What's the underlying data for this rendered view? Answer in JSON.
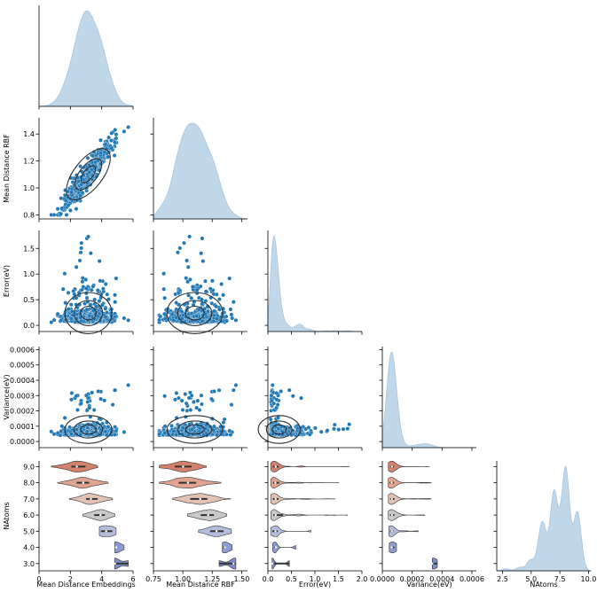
{
  "chart_data": {
    "type": "scatter",
    "variables": [
      "Mean Distance Embeddings",
      "Mean Distance RBF",
      "Error(eV)",
      "Variance(eV)",
      "NAtoms"
    ],
    "axis_labels": {
      "x": [
        "Mean Distance Embeddings",
        "Mean Distance RBF",
        "Error(eV)",
        "Variance(eV)",
        "NAtoms"
      ],
      "y": [
        "Mean Distance RBF",
        "Error(eV)",
        "Variance(eV)",
        "NAtoms"
      ]
    },
    "xlim": [
      [
        0,
        6
      ],
      [
        0.75,
        1.55
      ],
      [
        0,
        2.0
      ],
      [
        0,
        0.00063
      ],
      [
        2,
        10.2
      ]
    ],
    "ylim": [
      [
        0.77,
        1.52
      ],
      [
        -0.12,
        1.85
      ],
      [
        -4e-05,
        0.00062
      ],
      [
        2.55,
        9.35
      ]
    ],
    "x_ticks": [
      [
        "0",
        "2",
        "4",
        "6"
      ],
      [
        "0.75",
        "1.00",
        "1.25",
        "1.50"
      ],
      [
        "0.0",
        "0.5",
        "1.0",
        "1.5",
        "2.0"
      ],
      [
        "0.0000",
        "0.0002",
        "0.0004",
        "0.0006"
      ],
      [
        "2.5",
        "5.0",
        "7.5",
        "10.0"
      ]
    ],
    "x_tick_values": [
      [
        0,
        2,
        4,
        6
      ],
      [
        0.75,
        1.0,
        1.25,
        1.5
      ],
      [
        0,
        0.5,
        1.0,
        1.5,
        2.0
      ],
      [
        0,
        0.0002,
        0.0004,
        0.0006
      ],
      [
        2.5,
        5.0,
        7.5,
        10.0
      ]
    ],
    "y_ticks": [
      [
        "0.8",
        "1.0",
        "1.2",
        "1.4"
      ],
      [
        "0.0",
        "0.5",
        "1.0",
        "1.5"
      ],
      [
        "0.0000",
        "0.0001",
        "0.0002",
        "0.0003",
        "0.0004",
        "0.0005",
        "0.0006"
      ],
      [
        "3.0",
        "4.0",
        "5.0",
        "6.0",
        "7.0",
        "8.0",
        "9.0"
      ]
    ],
    "y_tick_values": [
      [
        0.8,
        1.0,
        1.2,
        1.4
      ],
      [
        0,
        0.5,
        1.0,
        1.5
      ],
      [
        0,
        0.0001,
        0.0002,
        0.0003,
        0.0004,
        0.0005,
        0.0006
      ],
      [
        3,
        4,
        5,
        6,
        7,
        8,
        9
      ]
    ],
    "natoms_levels": [
      3,
      4,
      5,
      6,
      7,
      8,
      9
    ],
    "violin_palette": [
      "#7f8fc6",
      "#8e9bd0",
      "#b5bdde",
      "#c9c9c9",
      "#e2c2b2",
      "#e0a48f",
      "#d2826c"
    ],
    "diag_kde_color": "#b9d3e8",
    "scatter_color": "#1f77b4",
    "contour_color": "#2b2f33",
    "natoms_distribution": {
      "x": [
        3,
        4,
        5,
        6,
        7,
        8,
        9
      ],
      "values": [
        0.02,
        0.03,
        0.1,
        0.5,
        0.78,
        1.0,
        0.58
      ]
    },
    "group_stats": {
      "embeddings_median": [
        5.0,
        4.95,
        4.6,
        4.0,
        3.5,
        2.9,
        2.5
      ],
      "rbf_median": [
        1.43,
        1.43,
        1.33,
        1.24,
        1.17,
        1.12,
        1.06
      ],
      "error_median": [
        0.15,
        0.2,
        0.15,
        0.15,
        0.15,
        0.15,
        0.18
      ],
      "variance_median": [
        0.00035,
        6e-05,
        5e-05,
        5e-05,
        5e-05,
        5e-05,
        5e-05
      ]
    }
  }
}
